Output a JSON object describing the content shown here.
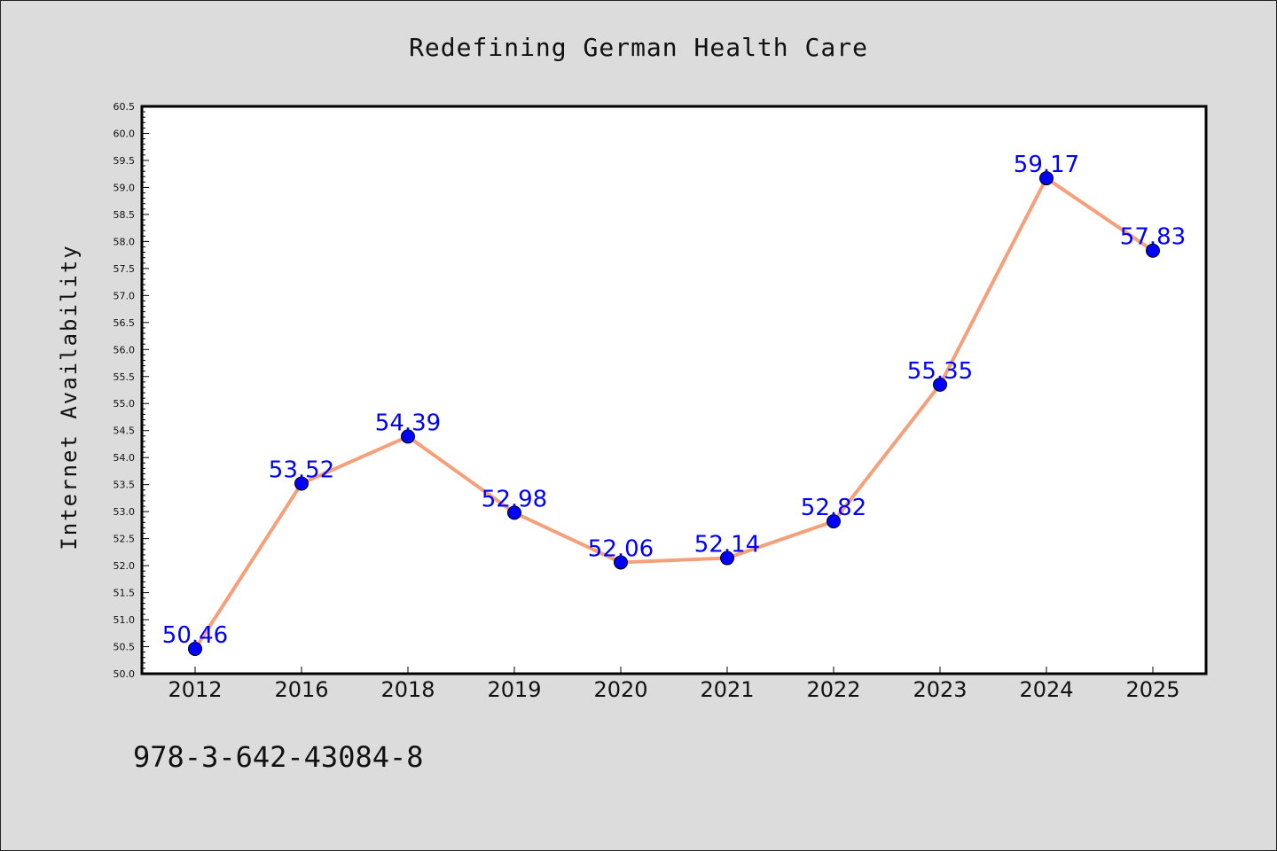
{
  "chart_data": {
    "type": "line",
    "title": "Redefining German Health Care",
    "xlabel": "",
    "ylabel": "Internet Availability",
    "categories": [
      "2012",
      "2016",
      "2018",
      "2019",
      "2020",
      "2021",
      "2022",
      "2023",
      "2024",
      "2025"
    ],
    "series": [
      {
        "values": [
          50.46,
          53.52,
          54.39,
          52.98,
          52.06,
          52.14,
          52.82,
          55.35,
          59.17,
          57.83
        ],
        "data_labels": [
          "50.46",
          "53.52",
          "54.39",
          "52.98",
          "52.06",
          "52.14",
          "52.82",
          "55.35",
          "59.17",
          "57.83"
        ]
      }
    ],
    "ylim": [
      50.0,
      60.5
    ],
    "yticks": [
      "50.0",
      "50.5",
      "51.0",
      "51.5",
      "52.0",
      "52.5",
      "53.0",
      "53.5",
      "54.0",
      "54.5",
      "55.0",
      "55.5",
      "56.0",
      "56.5",
      "57.0",
      "57.5",
      "58.0",
      "58.5",
      "59.0",
      "59.5",
      "60.0",
      "60.5"
    ],
    "grid": false,
    "legend": "none",
    "colors": {
      "line": "#f5a07a",
      "marker": "#0000ff",
      "data_label": "#0000ff",
      "plot_background": "#ffffff",
      "figure_background": "#dcdcdc"
    }
  },
  "footer_text": "978-3-642-43084-8"
}
